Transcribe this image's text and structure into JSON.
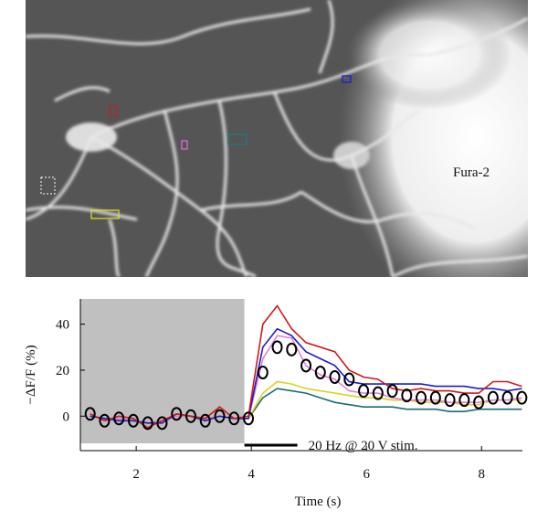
{
  "chart_data": {
    "type": "line",
    "image_label": "Fura-2",
    "xlabel": "Time (s)",
    "ylabel": "−ΔF/F (%)",
    "annotation": "20 Hz @ 20 V stim.",
    "shade": [
      1.03,
      3.88
    ],
    "stimulus": [
      3.88,
      4.8
    ],
    "x": [
      1.2,
      1.45,
      1.7,
      1.95,
      2.2,
      2.45,
      2.7,
      2.95,
      3.2,
      3.45,
      3.7,
      3.95,
      4.2,
      4.45,
      4.7,
      4.95,
      5.2,
      5.45,
      5.7,
      5.95,
      6.2,
      6.45,
      6.7,
      6.95,
      7.2,
      7.45,
      7.7,
      7.95,
      8.2,
      8.45,
      8.7
    ],
    "series": [
      {
        "color": "#1a6b78",
        "values": [
          0,
          -1,
          -1,
          -2,
          -3,
          -2,
          0,
          0,
          -1,
          0,
          -1,
          -1,
          8,
          12,
          11,
          10,
          8,
          6,
          5,
          4,
          4,
          4,
          3,
          3,
          3,
          2,
          2,
          3,
          3,
          3,
          3
        ]
      },
      {
        "color": "#e0d020",
        "values": [
          0,
          -1,
          -1,
          -2,
          -3,
          -2,
          0,
          0,
          -1,
          0,
          -1,
          -1,
          10,
          15,
          14,
          12,
          11,
          10,
          9,
          8,
          8,
          7,
          7,
          6,
          6,
          6,
          5,
          5,
          7,
          7,
          7
        ]
      },
      {
        "color": "#e080e0",
        "values": [
          0,
          -1,
          -1,
          -2,
          -3,
          -2,
          0,
          0,
          -1,
          0,
          -1,
          -1,
          25,
          35,
          34,
          22,
          18,
          16,
          11,
          10,
          10,
          8,
          7,
          7,
          7,
          6,
          6,
          6,
          7,
          7,
          8
        ]
      },
      {
        "color": "#1c1cc8",
        "values": [
          0,
          -1,
          -2,
          -2,
          -3,
          -3,
          1,
          0,
          -2,
          0,
          -1,
          -1,
          30,
          38,
          35,
          28,
          25,
          22,
          15,
          14,
          14,
          14,
          14,
          14,
          13,
          13,
          13,
          12,
          12,
          11,
          12
        ]
      },
      {
        "color": "#d01818",
        "values": [
          1,
          -2,
          0,
          -1,
          -5,
          -2,
          1,
          0,
          -1,
          4,
          -1,
          0,
          40,
          48,
          38,
          32,
          30,
          28,
          20,
          17,
          16,
          12,
          11,
          12,
          11,
          11,
          10,
          10,
          15,
          15,
          13
        ]
      },
      {
        "color": "#000000",
        "marker": "circle",
        "values": [
          1,
          -2,
          -1,
          -2,
          -3,
          -3,
          1,
          0,
          -2,
          0,
          -1,
          -1,
          19,
          30,
          29,
          22,
          19,
          17,
          16,
          11,
          10,
          11,
          9,
          8,
          8,
          7,
          7,
          6,
          8,
          8,
          8
        ]
      }
    ],
    "xlim": [
      1.03,
      8.71
    ],
    "ylim": [
      -15,
      51
    ],
    "xticks": [
      2,
      4,
      6,
      8
    ],
    "yticks": [
      0,
      20,
      40
    ]
  }
}
